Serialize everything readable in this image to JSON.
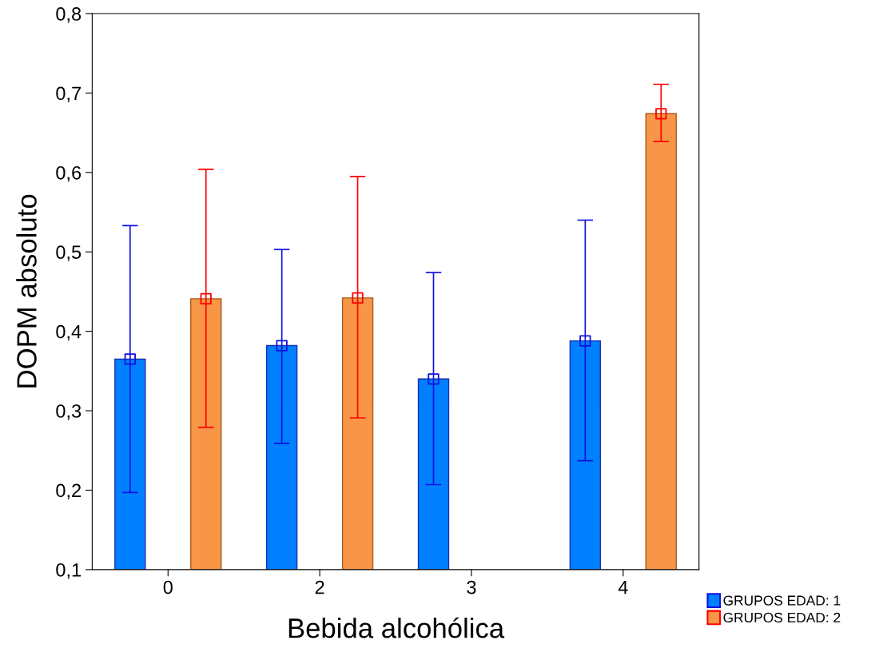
{
  "chart_data": {
    "type": "bar",
    "xlabel": "Bebida alcohólica",
    "ylabel": "DOPM absoluto",
    "categories": [
      "0",
      "2",
      "3",
      "4"
    ],
    "series": [
      {
        "name": "GRUPOS EDAD: 1",
        "color": "#0080ff",
        "values": [
          0.365,
          0.382,
          0.34,
          0.388
        ],
        "errors": [
          [
            0.197,
            0.533
          ],
          [
            0.259,
            0.503
          ],
          [
            0.207,
            0.474
          ],
          [
            0.237,
            0.54
          ]
        ]
      },
      {
        "name": "GRUPOS EDAD: 2",
        "color": "#f79646",
        "values": [
          0.441,
          0.442,
          null,
          0.674
        ],
        "errors": [
          [
            0.279,
            0.604
          ],
          [
            0.291,
            0.595
          ],
          null,
          [
            0.639,
            0.711
          ]
        ]
      },
      {
        "type": "scatter",
        "color": "#1010e0",
        "x": [
          "0",
          "2",
          "3",
          "4"
        ],
        "values": [
          0.365,
          0.382,
          0.34,
          0.388
        ],
        "marker": "square"
      },
      {
        "type": "scatter",
        "color": "#ff0000",
        "x": [
          "0",
          "2",
          "3",
          "4"
        ],
        "values": [
          0.441,
          0.442,
          null,
          0.674
        ],
        "marker": "square"
      }
    ],
    "ylim": [
      0.1,
      0.8
    ],
    "yticks": [
      {
        "value": 0.1,
        "label": "0,1"
      },
      {
        "value": 0.2,
        "label": "0,2"
      },
      {
        "value": 0.3,
        "label": "0,3"
      },
      {
        "value": 0.4,
        "label": "0,4"
      },
      {
        "value": 0.5,
        "label": "0,5"
      },
      {
        "value": 0.6,
        "label": "0,6"
      },
      {
        "value": 0.7,
        "label": "0,7"
      },
      {
        "value": 0.8,
        "label": "0,8"
      }
    ],
    "grid": false,
    "legend": "bottom right"
  }
}
